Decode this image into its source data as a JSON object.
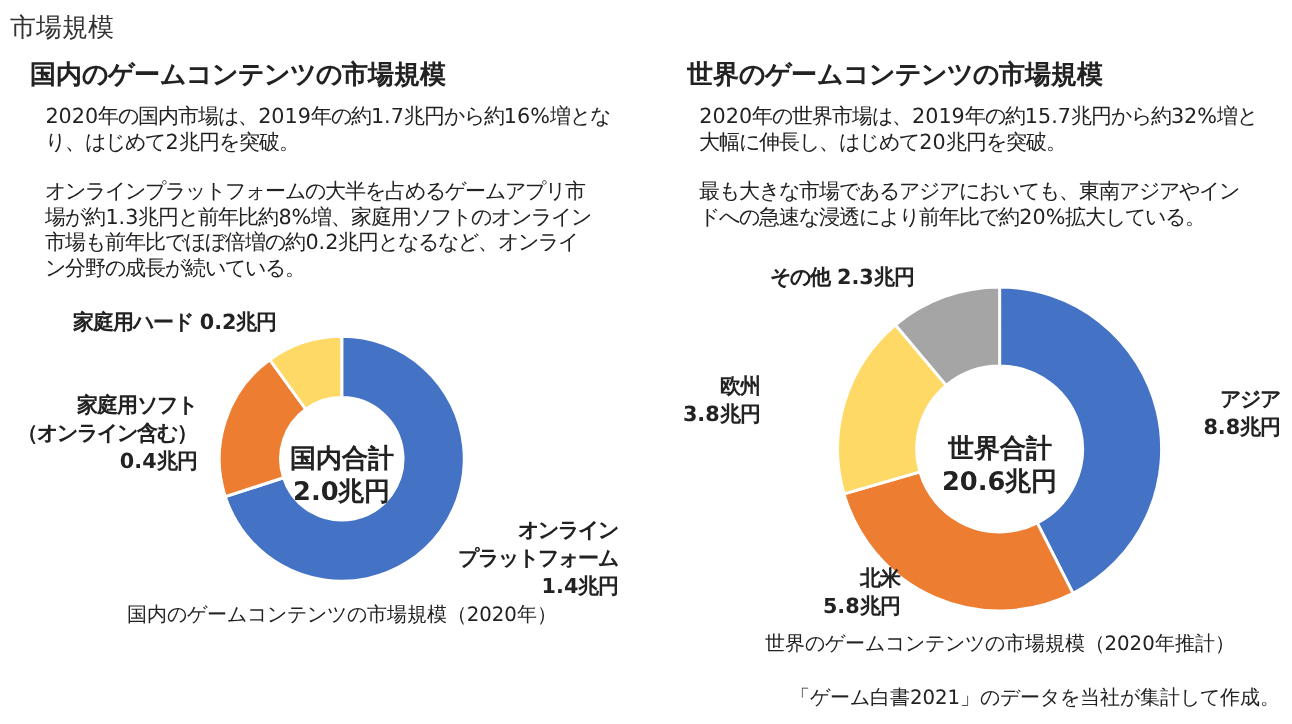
{
  "chart_data": [
    {
      "type": "donut",
      "title": "国内のゲームコンテンツの市場規模",
      "subtitle": "2020年の国内市場は、2019年の約1.7兆円から約16%増となり、はじめて2兆円を突破。",
      "categories": [
        "オンラインプラットフォーム",
        "家庭用ソフト（オンライン含む）",
        "家庭用ハード"
      ],
      "values": [
        1.4,
        0.4,
        0.2
      ],
      "value_labels": [
        "1.4兆円",
        "0.4兆円",
        "0.2兆円"
      ],
      "colors": [
        "#4472c4",
        "#ed7d31",
        "#ffd966"
      ],
      "annotations": [
        "国内合計\n2.0兆円",
        "国内のゲームコンテンツの市場規模（2020年）",
        "市場規模",
        "オンラインプラットフォームの大半を占めるゲームアプリ市場が約1.3兆円と前年比約8%増、家庭用ソフトのオンライン市場も前年比でほぼ倍増の約0.2兆円となるなど、オンライン分野の成長が続いている。"
      ],
      "legend": false
    },
    {
      "type": "donut",
      "title": "世界のゲームコンテンツの市場規模",
      "subtitle": "2020年の世界市場は、2019年の約15.7兆円から約32%増と大幅に伸長し、はじめて20兆円を突破。",
      "categories": [
        "アジア",
        "北米",
        "欧州",
        "その他"
      ],
      "values": [
        8.8,
        5.8,
        3.8,
        2.3
      ],
      "value_labels": [
        "8.8兆円",
        "5.8兆円",
        "3.8兆円",
        "2.3兆円"
      ],
      "colors": [
        "#4472c4",
        "#ed7d31",
        "#ffd966",
        "#a5a5a5"
      ],
      "annotations": [
        "世界合計\n20.6兆円",
        "世界のゲームコンテンツの市場規模（2020年推計）",
        "「ゲーム白書2021」のデータを当社が集計して作成。",
        "最も大きな市場であるアジアにおいても、東南アジアやインドへの急速な浸透により前年比で約20%拡大している。"
      ],
      "legend": false
    }
  ]
}
